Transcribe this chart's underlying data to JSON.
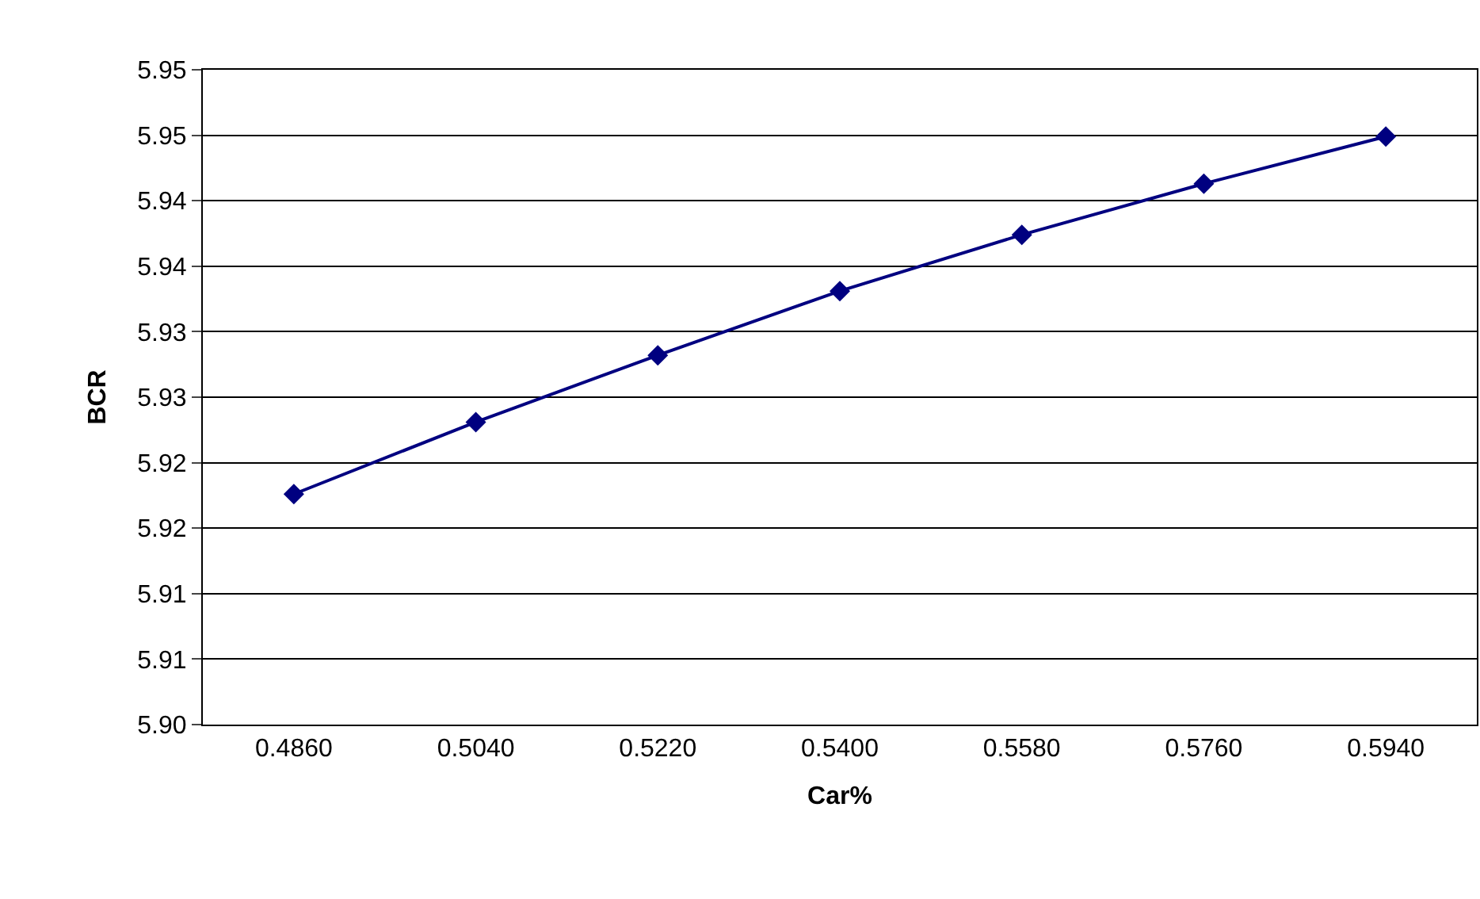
{
  "chart_data": {
    "type": "line",
    "xlabel": "Car%",
    "ylabel": "BCR",
    "categories": [
      "0.4860",
      "0.5040",
      "0.5220",
      "0.5400",
      "0.5580",
      "0.5760",
      "0.5940"
    ],
    "series": [
      {
        "color": "#000080",
        "values": [
          5.9176,
          5.9231,
          5.9282,
          5.9331,
          5.9374,
          5.9413,
          5.9449
        ]
      }
    ],
    "ylim": [
      5.9,
      5.95
    ],
    "yticks": [
      {
        "value": 5.9,
        "label": "5.90"
      },
      {
        "value": 5.905,
        "label": "5.91"
      },
      {
        "value": 5.91,
        "label": "5.91"
      },
      {
        "value": 5.915,
        "label": "5.92"
      },
      {
        "value": 5.92,
        "label": "5.92"
      },
      {
        "value": 5.925,
        "label": "5.93"
      },
      {
        "value": 5.93,
        "label": "5.93"
      },
      {
        "value": 5.935,
        "label": "5.94"
      },
      {
        "value": 5.94,
        "label": "5.94"
      },
      {
        "value": 5.945,
        "label": "5.95"
      },
      {
        "value": 5.95,
        "label": "5.95"
      }
    ],
    "grid": "y",
    "marker": "diamond",
    "line_style": "solid",
    "legend": false
  }
}
